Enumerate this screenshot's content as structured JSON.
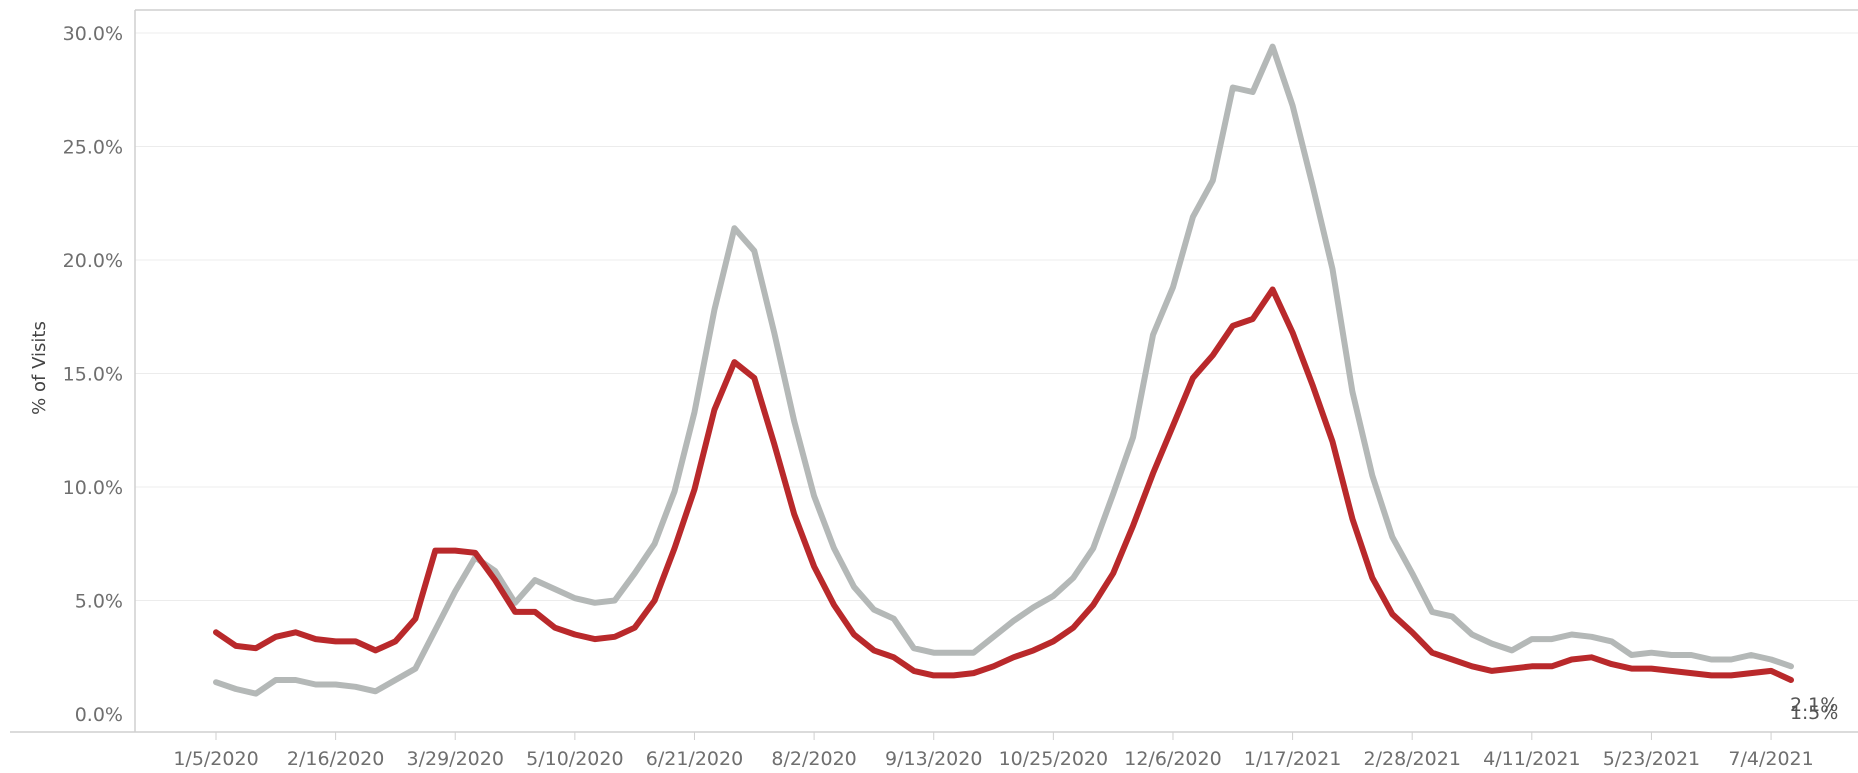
{
  "chart_data": {
    "type": "line",
    "title": "",
    "ylabel": "% of Visits",
    "xlabel": "",
    "ylim": [
      0,
      30
    ],
    "y_ticks": [
      "0.0%",
      "5.0%",
      "10.0%",
      "15.0%",
      "20.0%",
      "25.0%",
      "30.0%"
    ],
    "x_ticks": [
      "1/5/2020",
      "2/16/2020",
      "3/29/2020",
      "5/10/2020",
      "6/21/2020",
      "8/2/2020",
      "9/13/2020",
      "10/25/2020",
      "12/6/2020",
      "1/17/2021",
      "2/28/2021",
      "4/11/2021",
      "5/23/2021",
      "7/4/2021"
    ],
    "grid": true,
    "colors": {
      "gray_series": "#b4b8b7",
      "red_series": "#b9292b"
    },
    "series": [
      {
        "color": "#b4b8b7",
        "values": [
          1.4,
          1.1,
          0.9,
          1.5,
          1.5,
          1.3,
          1.3,
          1.2,
          1.0,
          1.5,
          2.0,
          3.7,
          5.4,
          6.9,
          6.3,
          4.9,
          5.9,
          5.5,
          5.1,
          4.9,
          5.0,
          6.2,
          7.5,
          9.8,
          13.3,
          17.8,
          21.4,
          20.4,
          16.8,
          12.9,
          9.6,
          7.3,
          5.6,
          4.6,
          4.2,
          2.9,
          2.7,
          2.7,
          2.7,
          3.4,
          4.1,
          4.7,
          5.2,
          6.0,
          7.3,
          9.7,
          12.2,
          16.7,
          18.8,
          21.9,
          23.5,
          27.6,
          27.4,
          29.4,
          26.8,
          23.3,
          19.6,
          14.2,
          10.5,
          7.8,
          6.2,
          4.5,
          4.3,
          3.5,
          3.1,
          2.8,
          3.3,
          3.3,
          3.5,
          3.4,
          3.2,
          2.6,
          2.7,
          2.6,
          2.6,
          2.4,
          2.4,
          2.6,
          2.4,
          2.1
        ]
      },
      {
        "color": "#b9292b",
        "values": [
          3.6,
          3.0,
          2.9,
          3.4,
          3.6,
          3.3,
          3.2,
          3.2,
          2.8,
          3.2,
          4.2,
          7.2,
          7.2,
          7.1,
          5.9,
          4.5,
          4.5,
          3.8,
          3.5,
          3.3,
          3.4,
          3.8,
          5.0,
          7.3,
          9.9,
          13.4,
          15.5,
          14.8,
          11.9,
          8.8,
          6.5,
          4.8,
          3.5,
          2.8,
          2.5,
          1.9,
          1.7,
          1.7,
          1.8,
          2.1,
          2.5,
          2.8,
          3.2,
          3.8,
          4.8,
          6.2,
          8.3,
          10.6,
          12.7,
          14.8,
          15.8,
          17.1,
          17.4,
          18.7,
          16.8,
          14.5,
          12.0,
          8.6,
          6.0,
          4.4,
          3.6,
          2.7,
          2.4,
          2.1,
          1.9,
          2.0,
          2.1,
          2.1,
          2.4,
          2.5,
          2.2,
          2.0,
          2.0,
          1.9,
          1.8,
          1.7,
          1.7,
          1.8,
          1.9,
          1.5
        ]
      }
    ],
    "end_labels": [
      "2.1%",
      "1.5%"
    ]
  }
}
